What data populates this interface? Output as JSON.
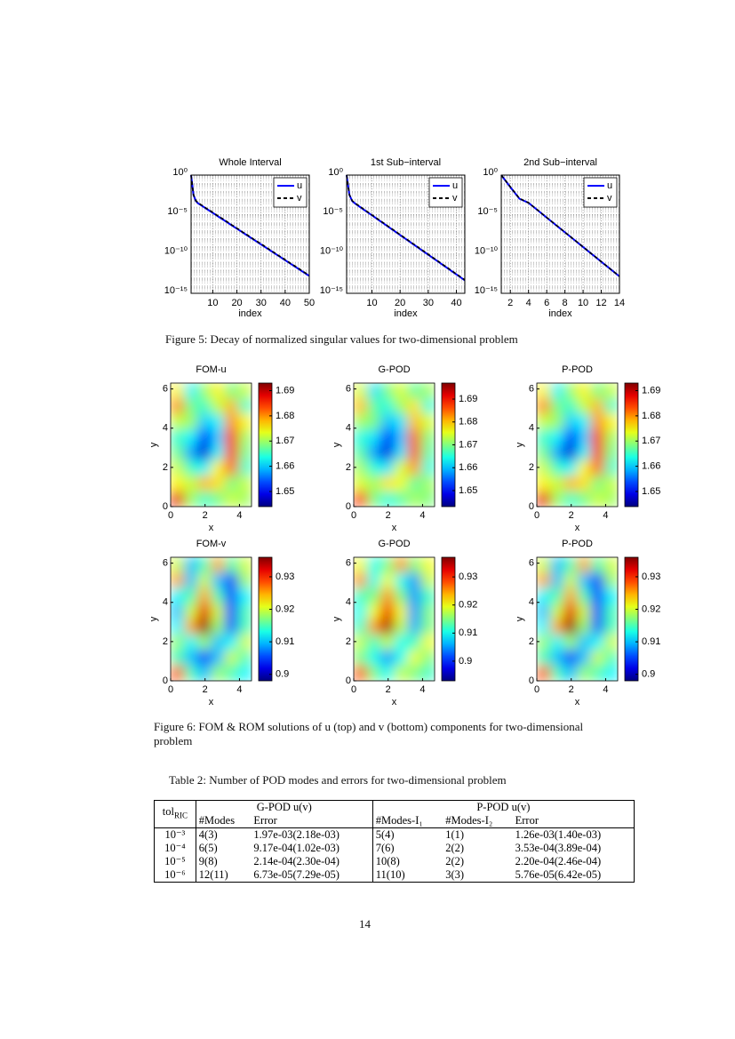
{
  "chart_data": [
    {
      "type": "line",
      "title": "Whole Interval",
      "xlabel": "index",
      "log_y": true,
      "grid": true,
      "legend": "upper right",
      "x": [
        1,
        2,
        3,
        4,
        5,
        6,
        7,
        8,
        9,
        10,
        11,
        12,
        13,
        14,
        15,
        16,
        17,
        18,
        19,
        20,
        21,
        22,
        23,
        24,
        25,
        26,
        27,
        28,
        29,
        30,
        31,
        32,
        33,
        34,
        35,
        36,
        37,
        38,
        39,
        40,
        41,
        42,
        43,
        44,
        45,
        46,
        47,
        48,
        49,
        50
      ],
      "xlim": [
        1,
        50
      ],
      "xticks": [
        10,
        20,
        30,
        40,
        50
      ],
      "ylim": [
        1e-15,
        1
      ],
      "yticks": [
        {
          "value": 1,
          "label": "10⁰"
        },
        {
          "value": 1e-05,
          "label": "10⁻⁵"
        },
        {
          "value": 1e-10,
          "label": "10⁻¹⁰"
        },
        {
          "value": 1e-15,
          "label": "10⁻¹⁵"
        }
      ],
      "series": [
        {
          "name": "u",
          "color": "#0000ff",
          "dash": false,
          "values": [
            1,
            0.003,
            0.0005,
            0.00025,
            0.00016,
            0.0001,
            6.3e-05,
            4e-05,
            2.5e-05,
            1.6e-05,
            1e-05,
            6.3e-06,
            4e-06,
            2.5e-06,
            1.6e-06,
            1e-06,
            6.3e-07,
            4e-07,
            2.5e-07,
            1.6e-07,
            1e-07,
            6.3e-08,
            4e-08,
            2.5e-08,
            1.6e-08,
            1e-08,
            6.3e-09,
            4e-09,
            2.5e-09,
            1.6e-09,
            1e-09,
            6.3e-10,
            4e-10,
            2.5e-10,
            1.6e-10,
            1e-10,
            6.3e-11,
            4e-11,
            2.5e-11,
            1.6e-11,
            1e-11,
            6.3e-12,
            4e-12,
            2.5e-12,
            1.6e-12,
            1e-12,
            6.3e-13,
            4e-13,
            2.5e-13,
            1.6e-13
          ]
        },
        {
          "name": "v",
          "color": "#000000",
          "dash": true,
          "values": [
            1,
            0.0032,
            0.00055,
            0.0003,
            0.00018,
            0.00012,
            7e-05,
            4.5e-05,
            3e-05,
            1.8e-05,
            1.2e-05,
            7e-06,
            4.5e-06,
            3e-06,
            1.8e-06,
            1.2e-06,
            7e-07,
            4.5e-07,
            3e-07,
            1.8e-07,
            1.2e-07,
            7e-08,
            4.5e-08,
            3e-08,
            1.8e-08,
            1.2e-08,
            7e-09,
            4.5e-09,
            3e-09,
            1.8e-09,
            1.2e-09,
            7e-10,
            4.5e-10,
            3e-10,
            1.8e-10,
            1.2e-10,
            7e-11,
            4.5e-11,
            3e-11,
            1.8e-11,
            1.2e-11,
            7e-12,
            4.5e-12,
            3e-12,
            1.8e-12,
            1.2e-12,
            7e-13,
            4.5e-13,
            3e-13,
            1.8e-13
          ]
        }
      ]
    },
    {
      "type": "line",
      "title": "1st Sub−interval",
      "xlabel": "index",
      "log_y": true,
      "grid": true,
      "legend": "upper right",
      "x": [
        1,
        2,
        3,
        4,
        5,
        6,
        7,
        8,
        9,
        10,
        11,
        12,
        13,
        14,
        15,
        16,
        17,
        18,
        19,
        20,
        21,
        22,
        23,
        24,
        25,
        26,
        27,
        28,
        29,
        30,
        31,
        32,
        33,
        34,
        35,
        36,
        37,
        38,
        39,
        40,
        41,
        42,
        43
      ],
      "xlim": [
        1,
        43
      ],
      "xticks": [
        10,
        20,
        30,
        40
      ],
      "ylim": [
        1e-15,
        1
      ],
      "yticks": [
        {
          "value": 1,
          "label": "10⁰"
        },
        {
          "value": 1e-05,
          "label": "10⁻⁵"
        },
        {
          "value": 1e-10,
          "label": "10⁻¹⁰"
        },
        {
          "value": 1e-15,
          "label": "10⁻¹⁵"
        }
      ],
      "series": [
        {
          "name": "u",
          "color": "#0000ff",
          "dash": false,
          "values": [
            1,
            0.003,
            0.0005,
            0.00025,
            0.00014,
            7.9e-05,
            4.4e-05,
            2.5e-05,
            1.4e-05,
            7.9e-06,
            4.4e-06,
            2.5e-06,
            1.4e-06,
            7.9e-07,
            4.4e-07,
            2.5e-07,
            1.4e-07,
            7.9e-08,
            4.4e-08,
            2.5e-08,
            1.4e-08,
            7.9e-09,
            4.4e-09,
            2.5e-09,
            1.4e-09,
            7.9e-10,
            4.4e-10,
            2.5e-10,
            1.4e-10,
            7.9e-11,
            4.4e-11,
            2.5e-11,
            1.4e-11,
            7.9e-12,
            4.4e-12,
            2.5e-12,
            1.4e-12,
            7.9e-13,
            4.4e-13,
            2.5e-13,
            1.4e-13,
            7.9e-14,
            4.4e-14
          ]
        },
        {
          "name": "v",
          "color": "#000000",
          "dash": true,
          "values": [
            1,
            0.0032,
            0.00055,
            0.00028,
            0.00016,
            9e-05,
            5e-05,
            2.8e-05,
            1.6e-05,
            9e-06,
            5e-06,
            2.8e-06,
            1.6e-06,
            9e-07,
            5e-07,
            2.8e-07,
            1.6e-07,
            9e-08,
            5e-08,
            2.8e-08,
            1.6e-08,
            9e-09,
            5e-09,
            2.8e-09,
            1.6e-09,
            9e-10,
            5e-10,
            2.8e-10,
            1.6e-10,
            9e-11,
            5e-11,
            2.8e-11,
            1.6e-11,
            9e-12,
            5e-12,
            2.8e-12,
            1.6e-12,
            9e-13,
            5e-13,
            2.8e-13,
            1.6e-13,
            9e-14,
            5e-14
          ]
        }
      ]
    },
    {
      "type": "line",
      "title": "2nd Sub−interval",
      "xlabel": "index",
      "log_y": true,
      "grid": true,
      "legend": "upper right",
      "x": [
        1,
        2,
        3,
        4,
        5,
        6,
        7,
        8,
        9,
        10,
        11,
        12,
        13,
        14
      ],
      "xlim": [
        1,
        14
      ],
      "xticks": [
        2,
        4,
        6,
        8,
        10,
        12,
        14
      ],
      "ylim": [
        1e-15,
        1
      ],
      "yticks": [
        {
          "value": 1,
          "label": "10⁰"
        },
        {
          "value": 1e-05,
          "label": "10⁻⁵"
        },
        {
          "value": 1e-10,
          "label": "10⁻¹⁰"
        },
        {
          "value": 1e-15,
          "label": "10⁻¹⁵"
        }
      ],
      "series": [
        {
          "name": "u",
          "color": "#0000ff",
          "dash": false,
          "values": [
            1,
            0.03,
            0.001,
            0.0003,
            3.5e-05,
            4e-06,
            4.7e-07,
            5.5e-08,
            6.4e-09,
            7.5e-10,
            8.7e-11,
            1e-11,
            1.2e-12,
            1.4e-13
          ]
        },
        {
          "name": "v",
          "color": "#000000",
          "dash": true,
          "values": [
            1,
            0.032,
            0.0011,
            0.00031,
            3.6e-05,
            4.2e-06,
            4.9e-07,
            5.7e-08,
            6.6e-09,
            7.7e-10,
            9e-11,
            1.05e-11,
            1.2e-12,
            1.45e-13
          ]
        }
      ]
    },
    {
      "type": "heatmap",
      "title": "FOM-u",
      "xlabel": "x",
      "ylabel": "y",
      "xlim": [
        0,
        4.7
      ],
      "ylim": [
        0,
        6.3
      ],
      "xticks": [
        0,
        2,
        4
      ],
      "yticks": [
        0,
        2,
        4,
        6
      ],
      "colormap": "jet",
      "zlim": [
        1.644,
        1.693
      ],
      "colorbar_ticks": [
        1.65,
        1.66,
        1.67,
        1.68,
        1.69
      ],
      "z": [
        [
          1.675,
          1.662,
          1.67,
          1.675,
          1.668,
          1.672
        ],
        [
          1.68,
          1.668,
          1.665,
          1.672,
          1.678,
          1.665
        ],
        [
          1.672,
          1.67,
          1.66,
          1.662,
          1.68,
          1.675
        ],
        [
          1.665,
          1.662,
          1.652,
          1.66,
          1.685,
          1.67
        ],
        [
          1.668,
          1.658,
          1.648,
          1.662,
          1.686,
          1.668
        ],
        [
          1.672,
          1.665,
          1.662,
          1.675,
          1.682,
          1.665
        ],
        [
          1.675,
          1.672,
          1.678,
          1.676,
          1.668,
          1.672
        ],
        [
          1.688,
          1.67,
          1.665,
          1.668,
          1.672,
          1.67
        ]
      ]
    },
    {
      "type": "heatmap",
      "title": "G-POD",
      "xlabel": "x",
      "ylabel": "y",
      "xlim": [
        0,
        4.7
      ],
      "ylim": [
        0,
        6.3
      ],
      "xticks": [
        0,
        2,
        4
      ],
      "yticks": [
        0,
        2,
        4,
        6
      ],
      "colormap": "jet",
      "zlim": [
        1.643,
        1.697
      ],
      "colorbar_ticks": [
        1.65,
        1.66,
        1.67,
        1.68,
        1.69
      ],
      "z": [
        [
          1.675,
          1.662,
          1.67,
          1.675,
          1.668,
          1.672
        ],
        [
          1.68,
          1.668,
          1.665,
          1.672,
          1.678,
          1.665
        ],
        [
          1.672,
          1.67,
          1.66,
          1.662,
          1.68,
          1.675
        ],
        [
          1.665,
          1.662,
          1.652,
          1.66,
          1.685,
          1.67
        ],
        [
          1.668,
          1.658,
          1.648,
          1.662,
          1.686,
          1.668
        ],
        [
          1.672,
          1.665,
          1.662,
          1.675,
          1.682,
          1.665
        ],
        [
          1.675,
          1.672,
          1.678,
          1.676,
          1.668,
          1.672
        ],
        [
          1.688,
          1.67,
          1.665,
          1.668,
          1.672,
          1.67
        ]
      ]
    },
    {
      "type": "heatmap",
      "title": "P-POD",
      "xlabel": "x",
      "ylabel": "y",
      "xlim": [
        0,
        4.7
      ],
      "ylim": [
        0,
        6.3
      ],
      "xticks": [
        0,
        2,
        4
      ],
      "yticks": [
        0,
        2,
        4,
        6
      ],
      "colormap": "jet",
      "zlim": [
        1.644,
        1.693
      ],
      "colorbar_ticks": [
        1.65,
        1.66,
        1.67,
        1.68,
        1.69
      ],
      "z": [
        [
          1.675,
          1.662,
          1.67,
          1.675,
          1.668,
          1.672
        ],
        [
          1.68,
          1.668,
          1.665,
          1.672,
          1.678,
          1.665
        ],
        [
          1.672,
          1.67,
          1.66,
          1.662,
          1.68,
          1.675
        ],
        [
          1.665,
          1.662,
          1.652,
          1.66,
          1.685,
          1.67
        ],
        [
          1.668,
          1.658,
          1.648,
          1.662,
          1.686,
          1.668
        ],
        [
          1.672,
          1.665,
          1.662,
          1.675,
          1.682,
          1.665
        ],
        [
          1.675,
          1.672,
          1.678,
          1.676,
          1.668,
          1.672
        ],
        [
          1.688,
          1.67,
          1.665,
          1.668,
          1.672,
          1.67
        ]
      ]
    },
    {
      "type": "heatmap",
      "title": "FOM-v",
      "xlabel": "x",
      "ylabel": "y",
      "xlim": [
        0,
        4.7
      ],
      "ylim": [
        0,
        6.3
      ],
      "xticks": [
        0,
        2,
        4
      ],
      "yticks": [
        0,
        2,
        4,
        6
      ],
      "colormap": "jet",
      "zlim": [
        0.898,
        0.936
      ],
      "colorbar_ticks": [
        0.9,
        0.91,
        0.92,
        0.93
      ],
      "z": [
        [
          0.92,
          0.91,
          0.915,
          0.925,
          0.915,
          0.92
        ],
        [
          0.925,
          0.91,
          0.92,
          0.91,
          0.905,
          0.918
        ],
        [
          0.912,
          0.915,
          0.925,
          0.915,
          0.905,
          0.912
        ],
        [
          0.91,
          0.92,
          0.932,
          0.92,
          0.905,
          0.915
        ],
        [
          0.912,
          0.925,
          0.935,
          0.918,
          0.906,
          0.915
        ],
        [
          0.918,
          0.912,
          0.918,
          0.91,
          0.912,
          0.92
        ],
        [
          0.915,
          0.91,
          0.905,
          0.91,
          0.92,
          0.915
        ],
        [
          0.928,
          0.915,
          0.91,
          0.918,
          0.915,
          0.912
        ]
      ]
    },
    {
      "type": "heatmap",
      "title": "G-POD",
      "xlabel": "x",
      "ylabel": "y",
      "xlim": [
        0,
        4.7
      ],
      "ylim": [
        0,
        6.3
      ],
      "xticks": [
        0,
        2,
        4
      ],
      "yticks": [
        0,
        2,
        4,
        6
      ],
      "colormap": "jet",
      "zlim": [
        0.893,
        0.937
      ],
      "colorbar_ticks": [
        0.9,
        0.91,
        0.92,
        0.93
      ],
      "z": [
        [
          0.92,
          0.91,
          0.915,
          0.925,
          0.915,
          0.92
        ],
        [
          0.925,
          0.91,
          0.92,
          0.91,
          0.905,
          0.918
        ],
        [
          0.912,
          0.915,
          0.925,
          0.915,
          0.905,
          0.912
        ],
        [
          0.91,
          0.92,
          0.932,
          0.92,
          0.905,
          0.915
        ],
        [
          0.912,
          0.925,
          0.935,
          0.918,
          0.906,
          0.915
        ],
        [
          0.918,
          0.912,
          0.918,
          0.91,
          0.912,
          0.92
        ],
        [
          0.915,
          0.91,
          0.905,
          0.91,
          0.92,
          0.915
        ],
        [
          0.928,
          0.915,
          0.91,
          0.918,
          0.915,
          0.912
        ]
      ]
    },
    {
      "type": "heatmap",
      "title": "P-POD",
      "xlabel": "x",
      "ylabel": "y",
      "xlim": [
        0,
        4.7
      ],
      "ylim": [
        0,
        6.3
      ],
      "xticks": [
        0,
        2,
        4
      ],
      "yticks": [
        0,
        2,
        4,
        6
      ],
      "colormap": "jet",
      "zlim": [
        0.898,
        0.936
      ],
      "colorbar_ticks": [
        0.9,
        0.91,
        0.92,
        0.93
      ],
      "z": [
        [
          0.92,
          0.91,
          0.915,
          0.925,
          0.915,
          0.92
        ],
        [
          0.925,
          0.91,
          0.92,
          0.91,
          0.905,
          0.918
        ],
        [
          0.912,
          0.915,
          0.925,
          0.915,
          0.905,
          0.912
        ],
        [
          0.91,
          0.92,
          0.932,
          0.92,
          0.905,
          0.915
        ],
        [
          0.912,
          0.925,
          0.935,
          0.918,
          0.906,
          0.915
        ],
        [
          0.918,
          0.912,
          0.918,
          0.91,
          0.912,
          0.92
        ],
        [
          0.915,
          0.91,
          0.905,
          0.91,
          0.92,
          0.915
        ],
        [
          0.928,
          0.915,
          0.91,
          0.918,
          0.915,
          0.912
        ]
      ]
    }
  ],
  "captions": {
    "figure5": "Figure 5: Decay of normalized singular values for two-dimensional problem",
    "figure6": "Figure 6: FOM & ROM solutions of u (top) and v (bottom) components for two-dimensional problem"
  },
  "table": {
    "caption": "Table 2: Number of POD modes and errors for two-dimensional problem",
    "header": {
      "tol": "tol",
      "tol_sub": "RIC",
      "gpod": "G-POD u(v)",
      "ppod": "P-POD u(v)",
      "columns": [
        "#Modes",
        "Error",
        "#Modes-I₁",
        "#Modes-I₂",
        "Error"
      ]
    },
    "rows": [
      [
        "10⁻³",
        "4(3)",
        "1.97e-03(2.18e-03)",
        "5(4)",
        "1(1)",
        "1.26e-03(1.40e-03)"
      ],
      [
        "10⁻⁴",
        "6(5)",
        "9.17e-04(1.02e-03)",
        "7(6)",
        "2(2)",
        "3.53e-04(3.89e-04)"
      ],
      [
        "10⁻⁵",
        "9(8)",
        "2.14e-04(2.30e-04)",
        "10(8)",
        "2(2)",
        "2.20e-04(2.46e-04)"
      ],
      [
        "10⁻⁶",
        "12(11)",
        "6.73e-05(7.29e-05)",
        "11(10)",
        "3(3)",
        "5.76e-05(6.42e-05)"
      ]
    ]
  },
  "page_number": "14"
}
